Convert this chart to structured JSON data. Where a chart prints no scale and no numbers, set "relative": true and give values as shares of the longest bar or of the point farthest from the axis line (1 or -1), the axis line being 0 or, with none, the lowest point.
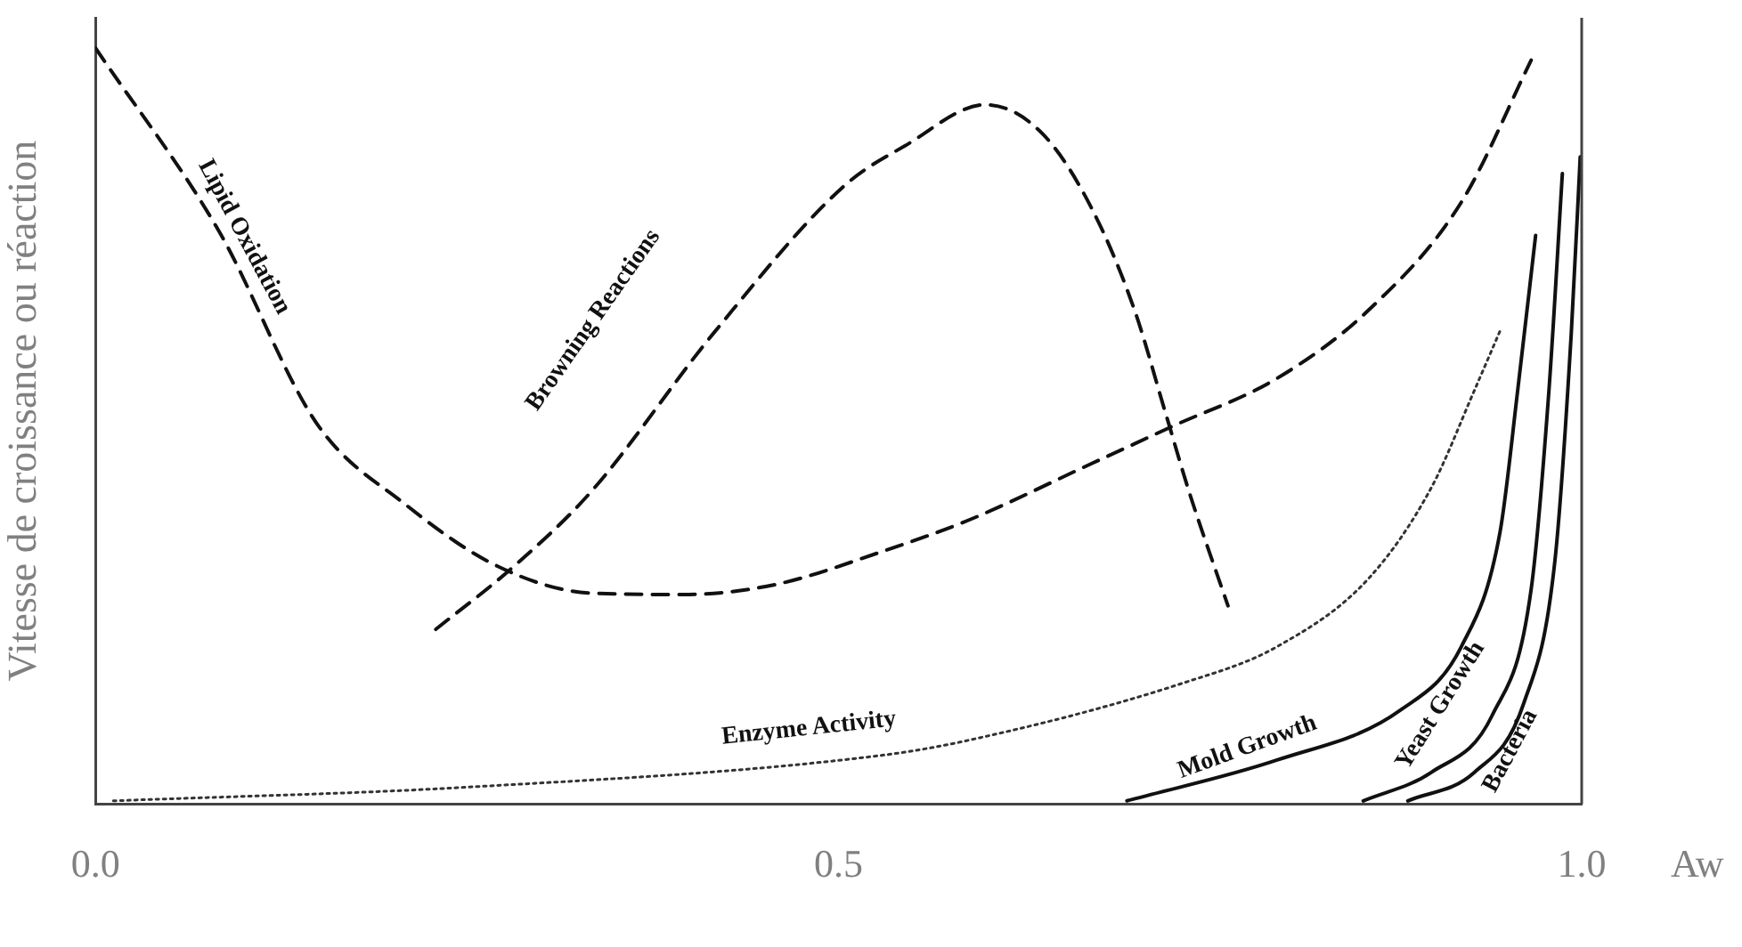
{
  "chart_data": {
    "type": "line",
    "xlabel": "Aw",
    "ylabel": "Vitesse de croissance ou réaction",
    "relative": true,
    "legend": false,
    "grid": false,
    "marker": "none",
    "xlim": [
      0,
      1
    ],
    "xticks": [
      {
        "value": 0,
        "label": "0.0"
      },
      0.5,
      {
        "value": 1,
        "label": "1.0"
      }
    ],
    "series": [
      {
        "name": "Lipid Oxidation",
        "color": "#111111",
        "line_style": "dashed",
        "x": [
          0,
          0.083,
          0.149,
          0.208,
          0.27,
          0.333,
          0.395,
          0.457,
          0.528,
          0.587,
          0.67,
          0.724,
          0.795,
          0.857,
          0.919,
          0.966
        ],
        "values": [
          1.0,
          0.758,
          0.503,
          0.397,
          0.315,
          0.279,
          0.277,
          0.29,
          0.333,
          0.375,
          0.45,
          0.499,
          0.563,
          0.654,
          0.796,
          0.984
        ]
      },
      {
        "name": "Browning Reactions",
        "color": "#111111",
        "line_style": "dashed",
        "x": [
          0.229,
          0.279,
          0.333,
          0.416,
          0.504,
          0.545,
          0.599,
          0.637,
          0.67,
          0.699,
          0.72,
          0.736,
          0.762
        ],
        "values": [
          0.231,
          0.31,
          0.412,
          0.623,
          0.818,
          0.871,
          0.925,
          0.887,
          0.789,
          0.654,
          0.517,
          0.412,
          0.262
        ]
      },
      {
        "name": "Enzyme Activity",
        "color": "#333333",
        "line_style": "dotted",
        "x": [
          0.012,
          0.249,
          0.528,
          0.587,
          0.732,
          0.795,
          0.857,
          0.899,
          0.928,
          0.946
        ],
        "values": [
          0.004,
          0.022,
          0.064,
          0.084,
          0.16,
          0.208,
          0.299,
          0.419,
          0.548,
          0.63
        ]
      },
      {
        "name": "Mold Growth",
        "color": "#111111",
        "line_style": "solid",
        "x": [
          0.694,
          0.795,
          0.878,
          0.919,
          0.945,
          0.957,
          0.969
        ],
        "values": [
          0.004,
          0.058,
          0.124,
          0.208,
          0.359,
          0.548,
          0.752
        ]
      },
      {
        "name": "Yeast Growth",
        "color": "#111111",
        "line_style": "solid",
        "x": [
          0.853,
          0.899,
          0.94,
          0.966,
          0.978,
          0.987
        ],
        "values": [
          0.004,
          0.042,
          0.118,
          0.284,
          0.548,
          0.834
        ]
      },
      {
        "name": "Bacteria",
        "color": "#111111",
        "line_style": "solid",
        "x": [
          0.883,
          0.928,
          0.961,
          0.982,
          0.993,
          0.999
        ],
        "values": [
          0.004,
          0.042,
          0.133,
          0.322,
          0.623,
          0.856
        ]
      }
    ]
  }
}
